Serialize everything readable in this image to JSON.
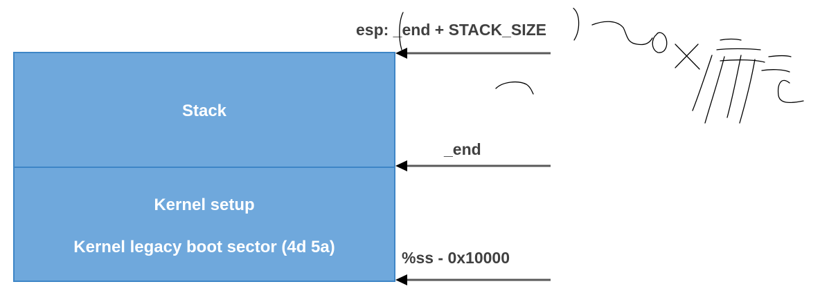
{
  "blocks": {
    "stack": {
      "label": "Stack"
    },
    "kernel": {
      "setup_label": "Kernel setup",
      "boot_sector_label": "Kernel legacy boot sector (4d 5a)"
    }
  },
  "pointers": {
    "esp": {
      "label": "esp: _end + STACK_SIZE"
    },
    "end": {
      "label": "_end"
    },
    "ss": {
      "label": "%ss - 0x10000"
    }
  },
  "colors": {
    "block_fill": "#6fa8dc",
    "block_border": "#3d85c6",
    "arrow": "#595959",
    "label_text": "#404040",
    "block_text": "#ffffff",
    "handwriting": "#000000"
  }
}
